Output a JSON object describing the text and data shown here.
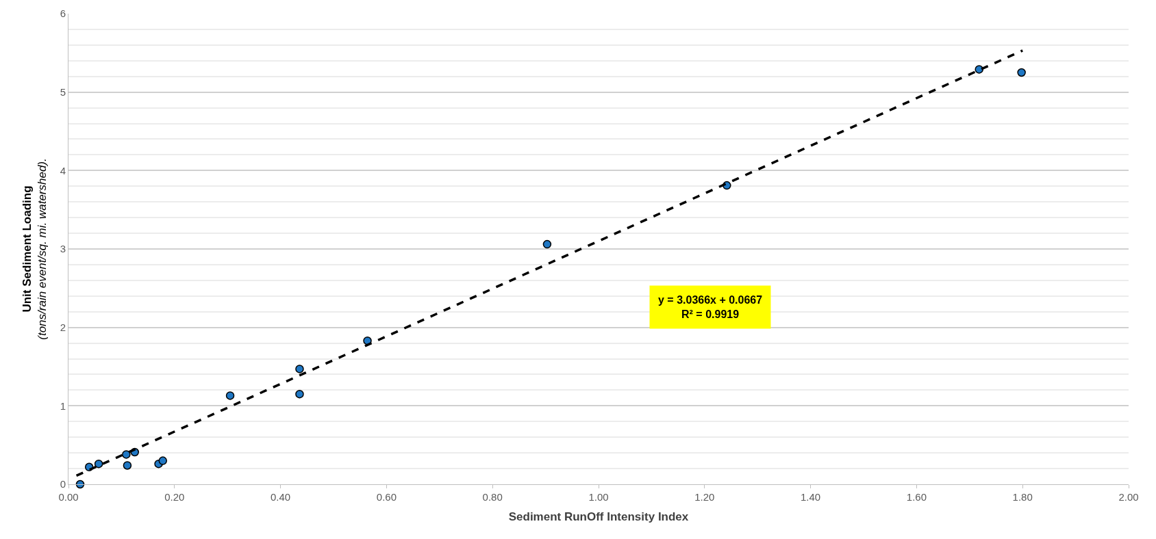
{
  "chart_data": {
    "type": "scatter",
    "xlabel": "Sediment RunOff Intensity Index",
    "ylabel": "Unit Sediment Loading\n(tons/rain event/sq. mi. watershed).",
    "annotations": [
      "y = 3.0366x + 0.0667\nR² = 0.9919"
    ],
    "series": [
      {
        "color": "#1f77c4",
        "marker": "circle",
        "x": [
          0.022,
          0.039,
          0.057,
          0.109,
          0.111,
          0.125,
          0.17,
          0.178,
          0.305,
          0.436,
          0.436,
          0.564,
          0.903,
          1.242,
          1.718,
          1.798
        ],
        "values": [
          0.0,
          0.22,
          0.26,
          0.38,
          0.24,
          0.41,
          0.26,
          0.3,
          1.13,
          1.47,
          1.15,
          1.83,
          3.06,
          3.81,
          5.29,
          5.25
        ]
      },
      {
        "type": "line",
        "color": "#000000",
        "line_style": "dashed",
        "x": [
          0.015,
          1.8
        ],
        "values": [
          0.11,
          5.53
        ]
      }
    ],
    "xlim": [
      0,
      2
    ],
    "xticks": [
      {
        "value": 0,
        "label": "0.00"
      },
      {
        "value": 0.2,
        "label": "0.20"
      },
      {
        "value": 0.4,
        "label": "0.40"
      },
      {
        "value": 0.6,
        "label": "0.60"
      },
      {
        "value": 0.8,
        "label": "0.80"
      },
      {
        "value": 1,
        "label": "1.00"
      },
      {
        "value": 1.2,
        "label": "1.20"
      },
      {
        "value": 1.4,
        "label": "1.40"
      },
      {
        "value": 1.6,
        "label": "1.60"
      },
      {
        "value": 1.8,
        "label": "1.80"
      },
      {
        "value": 2,
        "label": "2.00"
      }
    ],
    "ylim": [
      0,
      6
    ],
    "yticks": [
      0,
      1,
      2,
      3,
      4,
      5,
      6
    ],
    "grid": "y"
  }
}
